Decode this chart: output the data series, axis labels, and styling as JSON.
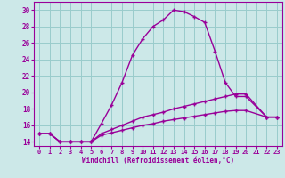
{
  "xlabel": "Windchill (Refroidissement éolien,°C)",
  "background_color": "#cce8e8",
  "grid_color": "#99cccc",
  "line_color": "#990099",
  "xlim": [
    -0.5,
    23.5
  ],
  "ylim": [
    13.5,
    31.0
  ],
  "yticks": [
    14,
    16,
    18,
    20,
    22,
    24,
    26,
    28,
    30
  ],
  "xticks": [
    0,
    1,
    2,
    3,
    4,
    5,
    6,
    7,
    8,
    9,
    10,
    11,
    12,
    13,
    14,
    15,
    16,
    17,
    18,
    19,
    20,
    21,
    22,
    23
  ],
  "series": [
    {
      "x": [
        0,
        1,
        2,
        3,
        4,
        5,
        6,
        7,
        8,
        9,
        10,
        11,
        12,
        13,
        14,
        15,
        16,
        17,
        18,
        19,
        20,
        22,
        23
      ],
      "y": [
        15,
        15,
        14,
        14,
        14,
        14,
        16.2,
        18.5,
        21.2,
        24.5,
        26.5,
        28.0,
        28.8,
        30.0,
        29.8,
        29.2,
        28.5,
        25.0,
        21.2,
        19.5,
        19.5,
        17.0,
        17.0
      ]
    },
    {
      "x": [
        0,
        1,
        2,
        3,
        4,
        5,
        6,
        7,
        8,
        9,
        10,
        11,
        12,
        13,
        14,
        15,
        16,
        17,
        18,
        19,
        20,
        22,
        23
      ],
      "y": [
        15,
        15,
        14,
        14,
        14,
        14,
        15.0,
        15.5,
        16.0,
        16.5,
        17.0,
        17.3,
        17.6,
        18.0,
        18.3,
        18.6,
        18.9,
        19.2,
        19.5,
        19.8,
        19.8,
        17.0,
        17.0
      ]
    },
    {
      "x": [
        0,
        1,
        2,
        3,
        4,
        5,
        6,
        7,
        8,
        9,
        10,
        11,
        12,
        13,
        14,
        15,
        16,
        17,
        18,
        19,
        20,
        22,
        23
      ],
      "y": [
        15,
        15,
        14,
        14,
        14,
        14,
        14.8,
        15.1,
        15.4,
        15.7,
        16.0,
        16.2,
        16.5,
        16.7,
        16.9,
        17.1,
        17.3,
        17.5,
        17.7,
        17.8,
        17.8,
        17.0,
        17.0
      ]
    }
  ]
}
